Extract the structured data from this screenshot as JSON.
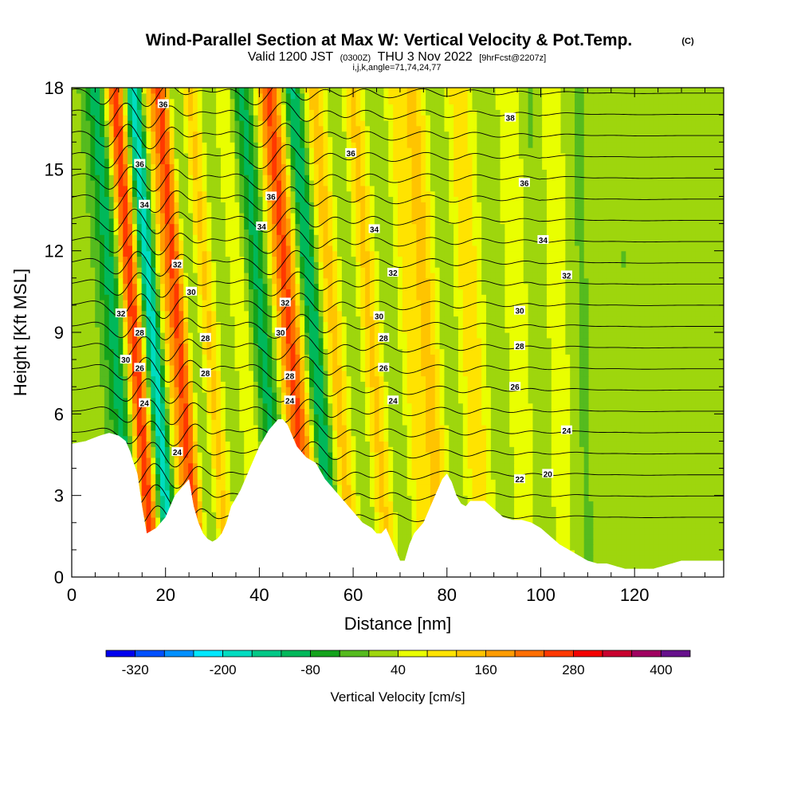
{
  "title": {
    "main": "Wind-Parallel Section at Max W: Vertical Velocity & Pot.Temp.",
    "copyright": "(C)",
    "valid_prefix": "Valid 1200 JST",
    "valid_utc": "(0300Z)",
    "valid_date": "THU 3 Nov 2022",
    "forecast": "[9hrFcst@2207z]",
    "indices": "i,j,k,angle=71,74,24,77"
  },
  "chart_data": {
    "type": "heatmap",
    "xlabel": "Distance [nm]",
    "ylabel": "Height [Kft MSL]",
    "xlim": [
      0,
      139
    ],
    "ylim": [
      0,
      18
    ],
    "x_ticks": [
      "0",
      "20",
      "40",
      "60",
      "80",
      "100",
      "120"
    ],
    "y_ticks": [
      "0",
      "3",
      "6",
      "9",
      "12",
      "15",
      "18"
    ],
    "bands": [
      {
        "center": 11.5,
        "width": 3.2,
        "w": -160,
        "slope": -0.38
      },
      {
        "center": 14.5,
        "width": 2.6,
        "w": 320,
        "slope": -0.38
      },
      {
        "center": 18.5,
        "width": 2.3,
        "w": -260,
        "slope": -0.38
      },
      {
        "center": 21.5,
        "width": 2.6,
        "w": 120,
        "slope": -0.38
      },
      {
        "center": 24.5,
        "width": 2.0,
        "w": 200,
        "slope": -0.38
      },
      {
        "center": 27.5,
        "width": 2.3,
        "w": -60,
        "slope": -0.38
      },
      {
        "center": 30.5,
        "width": 2.3,
        "w": 120,
        "slope": -0.38
      },
      {
        "center": 34.0,
        "width": 2.6,
        "w": -30,
        "slope": -0.38
      },
      {
        "center": 38.0,
        "width": 2.6,
        "w": 70,
        "slope": -0.4
      },
      {
        "center": 42.0,
        "width": 2.8,
        "w": -120,
        "slope": -0.4
      },
      {
        "center": 48.0,
        "width": 3.0,
        "w": 230,
        "slope": -0.42
      },
      {
        "center": 53.0,
        "width": 2.3,
        "w": -160,
        "slope": -0.42
      },
      {
        "center": 57.0,
        "width": 2.6,
        "w": 120,
        "slope": -0.38
      },
      {
        "center": 61.0,
        "width": 2.3,
        "w": -30,
        "slope": -0.36
      },
      {
        "center": 65.0,
        "width": 2.3,
        "w": 110,
        "slope": -0.36
      },
      {
        "center": 69.0,
        "width": 2.3,
        "w": -20,
        "slope": -0.3
      },
      {
        "center": 73.0,
        "width": 2.3,
        "w": 70,
        "slope": -0.3
      },
      {
        "center": 77.0,
        "width": 2.6,
        "w": 110,
        "slope": -0.3
      },
      {
        "center": 81.0,
        "width": 2.3,
        "w": -20,
        "slope": -0.25
      },
      {
        "center": 86.0,
        "width": 2.8,
        "w": 90,
        "slope": -0.25
      },
      {
        "center": 91.0,
        "width": 2.3,
        "w": -10,
        "slope": -0.2
      },
      {
        "center": 96.0,
        "width": 2.8,
        "w": 50,
        "slope": -0.2
      },
      {
        "center": 100.0,
        "width": 2.3,
        "w": -30,
        "slope": -0.15
      },
      {
        "center": 104.0,
        "width": 3.0,
        "w": 45,
        "slope": -0.12
      },
      {
        "center": 109.0,
        "width": 2.8,
        "w": -25,
        "slope": -0.1
      },
      {
        "center": 118.0,
        "width": 4.0,
        "w": -20,
        "slope": -0.05
      }
    ],
    "terrain": {
      "x": [
        0,
        3,
        6,
        8,
        10,
        11.5,
        12.5,
        13,
        14,
        15,
        16,
        18,
        20,
        21,
        22,
        24,
        25,
        26,
        27,
        28,
        29,
        30,
        31,
        32,
        33,
        34,
        36,
        38,
        40,
        41,
        42,
        43,
        44,
        45,
        46,
        47,
        48,
        49,
        50,
        52,
        53,
        54,
        55,
        56,
        57,
        58,
        59,
        60,
        61,
        62,
        63,
        64,
        65,
        66,
        67,
        68,
        69,
        70,
        71,
        72,
        73,
        74,
        75,
        76,
        77,
        78,
        79,
        80,
        81,
        82,
        83,
        84,
        85,
        86,
        88,
        90,
        92,
        94,
        96,
        98,
        100,
        102,
        104,
        106,
        108,
        110,
        112,
        114,
        116,
        118,
        120,
        122,
        124,
        126,
        128,
        130,
        132,
        134,
        136,
        139
      ],
      "h": [
        4.9,
        5.0,
        5.2,
        5.3,
        5.2,
        5.0,
        4.6,
        4.3,
        3.8,
        2.6,
        1.6,
        1.8,
        2.2,
        2.6,
        3.0,
        3.4,
        3.6,
        2.6,
        2.0,
        1.6,
        1.4,
        1.3,
        1.4,
        1.6,
        2.0,
        2.6,
        3.2,
        4.0,
        4.8,
        5.1,
        5.4,
        5.6,
        5.8,
        5.8,
        5.6,
        5.2,
        4.8,
        4.6,
        4.4,
        4.2,
        3.9,
        3.6,
        3.4,
        3.2,
        3.0,
        2.8,
        2.6,
        2.4,
        2.2,
        2.0,
        1.9,
        1.8,
        1.6,
        1.6,
        1.8,
        1.4,
        1.0,
        0.6,
        0.6,
        1.2,
        1.6,
        1.8,
        2.0,
        2.4,
        2.8,
        3.2,
        3.6,
        3.8,
        3.5,
        3.0,
        2.7,
        2.6,
        2.8,
        2.8,
        2.8,
        2.5,
        2.2,
        2.1,
        2.1,
        2.0,
        1.8,
        1.5,
        1.2,
        1.0,
        0.8,
        0.6,
        0.5,
        0.5,
        0.4,
        0.3,
        0.3,
        0.3,
        0.3,
        0.4,
        0.5,
        0.6,
        0.6,
        0.6,
        0.6,
        0.6
      ]
    },
    "theta_levels": [
      18,
      19,
      20,
      21,
      22,
      23,
      24,
      25,
      26,
      27,
      28,
      29,
      30,
      31,
      32,
      33,
      34,
      35,
      36,
      37,
      38
    ],
    "contour_labels": [
      {
        "text": "36",
        "x": 19.5,
        "y": 17.4
      },
      {
        "text": "36",
        "x": 14.5,
        "y": 15.2
      },
      {
        "text": "34",
        "x": 15.5,
        "y": 13.7
      },
      {
        "text": "32",
        "x": 22.5,
        "y": 11.5
      },
      {
        "text": "30",
        "x": 25.5,
        "y": 10.5
      },
      {
        "text": "32",
        "x": 10.5,
        "y": 9.7
      },
      {
        "text": "28",
        "x": 14.5,
        "y": 9.0
      },
      {
        "text": "30",
        "x": 11.5,
        "y": 8.0
      },
      {
        "text": "26",
        "x": 14.5,
        "y": 7.7
      },
      {
        "text": "28",
        "x": 28.5,
        "y": 8.8
      },
      {
        "text": "28",
        "x": 28.5,
        "y": 7.5
      },
      {
        "text": "24",
        "x": 15.5,
        "y": 6.4
      },
      {
        "text": "24",
        "x": 22.5,
        "y": 4.6
      },
      {
        "text": "36",
        "x": 42.5,
        "y": 14.0
      },
      {
        "text": "34",
        "x": 40.5,
        "y": 12.9
      },
      {
        "text": "32",
        "x": 45.5,
        "y": 10.1
      },
      {
        "text": "30",
        "x": 44.5,
        "y": 9.0
      },
      {
        "text": "28",
        "x": 46.5,
        "y": 7.4
      },
      {
        "text": "24",
        "x": 46.5,
        "y": 6.5
      },
      {
        "text": "36",
        "x": 59.5,
        "y": 15.6
      },
      {
        "text": "34",
        "x": 64.5,
        "y": 12.8
      },
      {
        "text": "32",
        "x": 68.5,
        "y": 11.2
      },
      {
        "text": "30",
        "x": 65.5,
        "y": 9.6
      },
      {
        "text": "28",
        "x": 66.5,
        "y": 8.8
      },
      {
        "text": "26",
        "x": 66.5,
        "y": 7.7
      },
      {
        "text": "24",
        "x": 68.5,
        "y": 6.5
      },
      {
        "text": "38",
        "x": 93.5,
        "y": 16.9
      },
      {
        "text": "36",
        "x": 96.5,
        "y": 14.5
      },
      {
        "text": "34",
        "x": 100.5,
        "y": 12.4
      },
      {
        "text": "32",
        "x": 105.5,
        "y": 11.1
      },
      {
        "text": "30",
        "x": 95.5,
        "y": 9.8
      },
      {
        "text": "28",
        "x": 95.5,
        "y": 8.5
      },
      {
        "text": "26",
        "x": 94.5,
        "y": 7.0
      },
      {
        "text": "24",
        "x": 105.5,
        "y": 5.4
      },
      {
        "text": "22",
        "x": 95.5,
        "y": 3.6
      },
      {
        "text": "20",
        "x": 101.5,
        "y": 3.8
      }
    ]
  },
  "colorbar": {
    "title": "Vertical Velocity [cm/s]",
    "tick_labels": [
      "-320",
      "-200",
      "-80",
      "40",
      "160",
      "280",
      "400"
    ],
    "bounds": [
      -360,
      -320,
      -280,
      -240,
      -200,
      -160,
      -120,
      -80,
      -40,
      0,
      40,
      80,
      120,
      160,
      200,
      240,
      280,
      320,
      360,
      400,
      440
    ],
    "colors": [
      "#0000ee",
      "#0050ff",
      "#0090ff",
      "#00e8ff",
      "#00dcc0",
      "#00c886",
      "#00b85a",
      "#13a31c",
      "#55bb1e",
      "#9ed60d",
      "#e9ff00",
      "#ffe300",
      "#ffc400",
      "#ff9c00",
      "#ff6e00",
      "#ff3800",
      "#f40000",
      "#c8002e",
      "#a00060",
      "#66108c"
    ]
  }
}
